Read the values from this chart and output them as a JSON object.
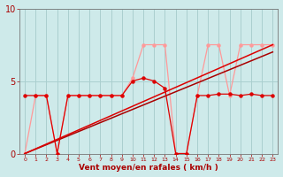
{
  "xlabel": "Vent moyen/en rafales ( km/h )",
  "xlim": [
    -0.5,
    23.5
  ],
  "ylim": [
    0,
    10
  ],
  "yticks": [
    0,
    5,
    10
  ],
  "xticks": [
    0,
    1,
    2,
    3,
    4,
    5,
    6,
    7,
    8,
    9,
    10,
    11,
    12,
    13,
    14,
    15,
    16,
    17,
    18,
    19,
    20,
    21,
    22,
    23
  ],
  "bg_color": "#ceeaea",
  "grid_color": "#aacfcf",
  "trend1_x": [
    0,
    23
  ],
  "trend1_y": [
    0.0,
    7.0
  ],
  "trend2_x": [
    0,
    23
  ],
  "trend2_y": [
    0.0,
    7.5
  ],
  "avg_x": [
    0,
    1,
    2,
    3,
    4,
    5,
    6,
    7,
    8,
    9,
    10,
    11,
    12,
    13,
    14,
    15,
    16,
    17,
    18,
    19,
    20,
    21,
    22,
    23
  ],
  "avg_y": [
    4.0,
    4.0,
    4.0,
    0.0,
    4.0,
    4.0,
    4.0,
    4.0,
    4.0,
    4.0,
    5.0,
    5.2,
    5.0,
    4.5,
    0.0,
    0.0,
    4.0,
    4.0,
    4.1,
    4.1,
    4.0,
    4.1,
    4.0,
    4.0
  ],
  "gust_x": [
    0,
    1,
    2,
    3,
    4,
    5,
    6,
    7,
    8,
    9,
    10,
    11,
    12,
    13,
    14,
    15,
    16,
    17,
    18,
    19,
    20,
    21,
    22,
    23
  ],
  "gust_y": [
    0.0,
    4.0,
    4.0,
    0.0,
    4.0,
    4.0,
    4.0,
    4.0,
    4.0,
    4.0,
    5.2,
    7.5,
    7.5,
    7.5,
    0.0,
    0.0,
    4.0,
    7.5,
    7.5,
    4.0,
    7.5,
    7.5,
    7.5,
    7.5
  ],
  "dark_red": "#aa0000",
  "medium_red": "#dd0000",
  "light_pink": "#ff9999"
}
